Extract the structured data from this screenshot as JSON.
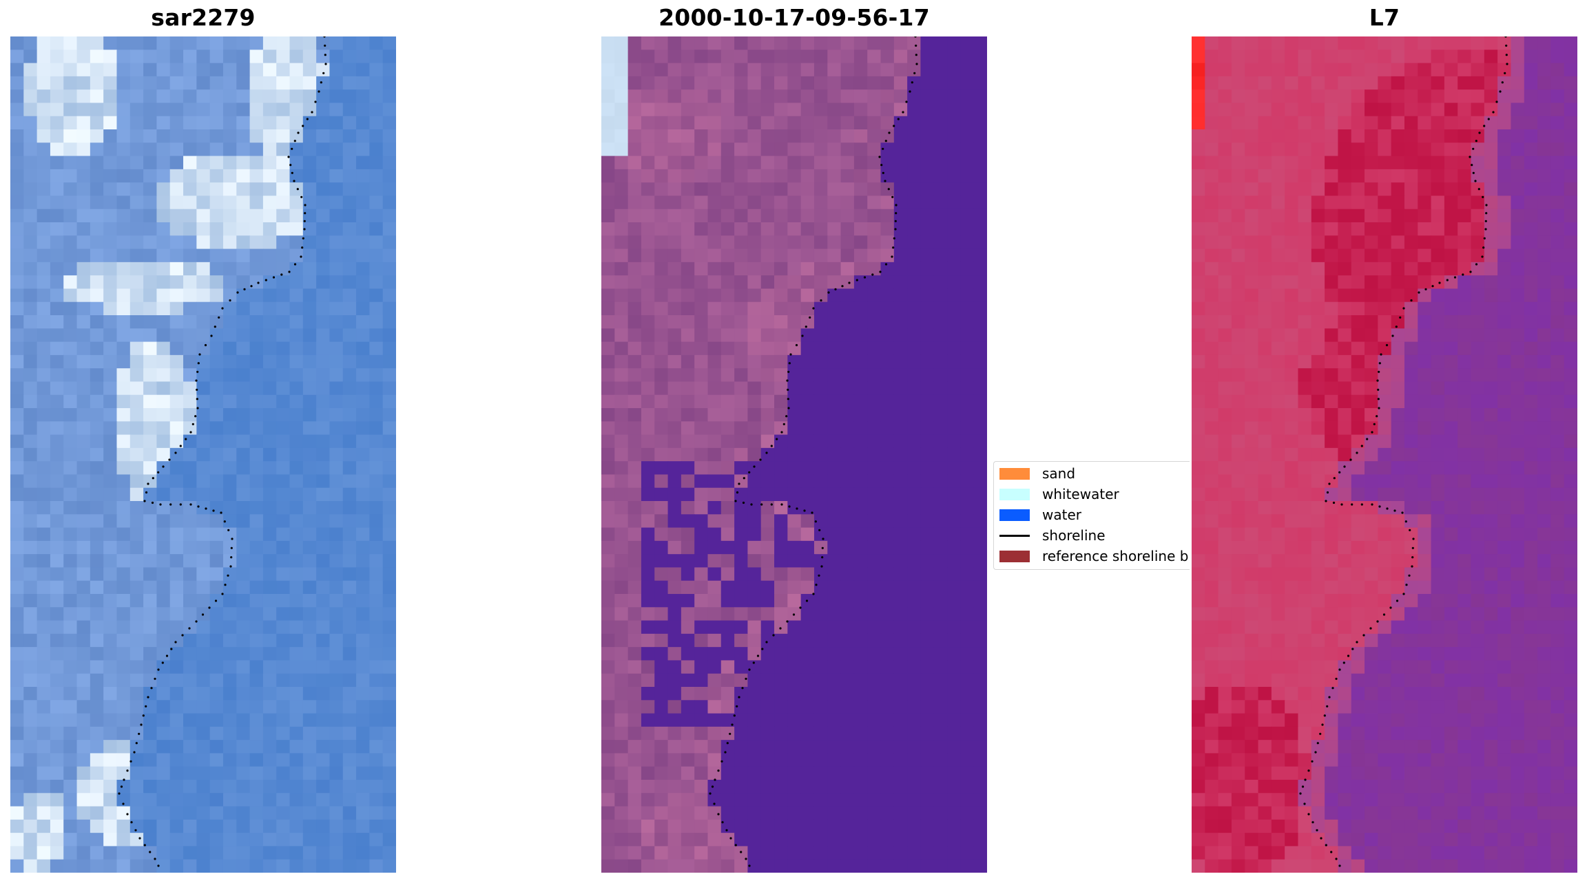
{
  "panels": [
    {
      "title": "sar2279",
      "palette": "rgb",
      "colors": [
        "#6b93d4",
        "#7aa0dd",
        "#5f8ccf",
        "#e8f2fa",
        "#a8c5e8",
        "#4e86d6"
      ]
    },
    {
      "title": "2000-10-17-09-56-17",
      "palette": "classified",
      "colors": [
        "#8a4b8c",
        "#b8679a",
        "#55249a",
        "#c9def2"
      ]
    },
    {
      "title": "L7",
      "palette": "false-color",
      "colors": [
        "#c4184a",
        "#d4537e",
        "#8b3a9a",
        "#ff2a2a",
        "#6a1ca8"
      ]
    }
  ],
  "legend": {
    "items": [
      {
        "label": "sand",
        "type": "patch",
        "color": "#ff8c3a"
      },
      {
        "label": "whitewater",
        "type": "patch",
        "color": "#c8ffff"
      },
      {
        "label": "water",
        "type": "patch",
        "color": "#0a5cff"
      },
      {
        "label": "shoreline",
        "type": "line",
        "color": "#000000"
      },
      {
        "label": "reference shoreline b",
        "type": "patch",
        "color": "#9c2f34"
      }
    ]
  }
}
